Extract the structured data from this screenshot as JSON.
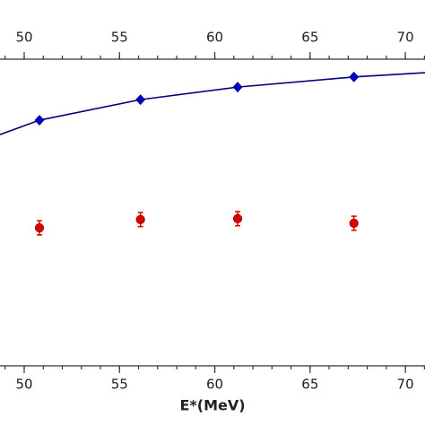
{
  "chart_data": {
    "type": "scatter",
    "x_label": "E*(MeV)",
    "xlim": [
      48.73,
      71.03
    ],
    "xticks": [
      50,
      55,
      60,
      65,
      70
    ],
    "minor_xtick_step": 1,
    "ylim": [
      0,
      100
    ],
    "x": [
      50.8,
      56.1,
      61.2,
      67.3
    ],
    "series": [
      {
        "color": "#0000cc",
        "marker": "diamond",
        "values": [
          80.1,
          86.8,
          90.9,
          94.2
        ]
      },
      {
        "color": "#dd0000",
        "marker": "circle",
        "values": [
          45.0,
          47.7,
          48.0,
          46.5
        ],
        "errors": [
          2.3,
          2.3,
          2.3,
          2.3
        ]
      }
    ],
    "fit": {
      "color": "#000080",
      "x": [
        48.73,
        50.8,
        56.1,
        61.2,
        67.3,
        71.03
      ],
      "values": [
        75.4,
        80.1,
        86.8,
        90.9,
        94.2,
        95.6
      ]
    }
  }
}
